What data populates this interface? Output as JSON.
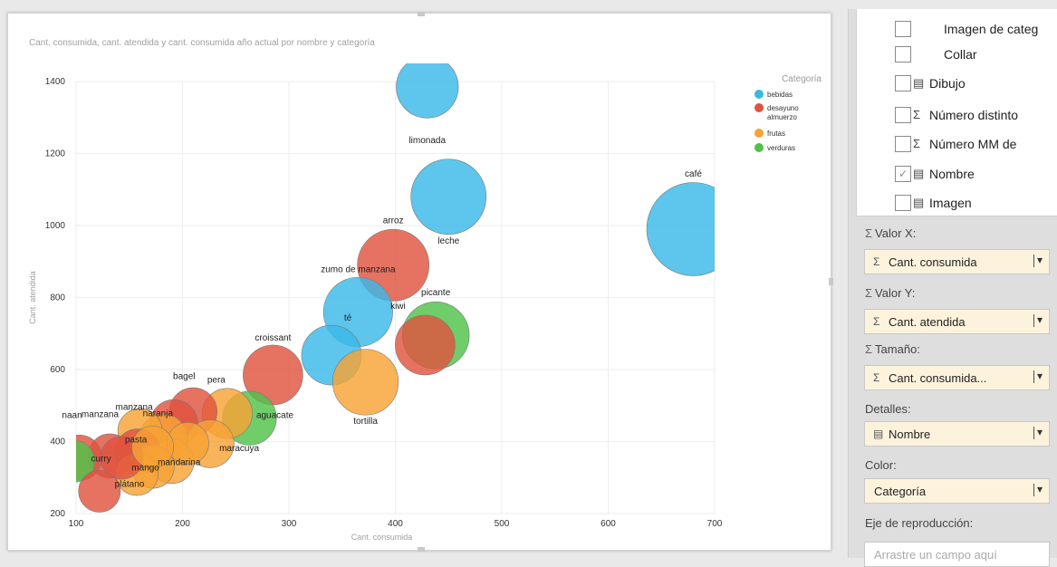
{
  "chart_title": "Cant. consumida, cant. atendida y cant. consumida año actual por nombre y categoría",
  "colors": {
    "bebidas": "#3ab8e8",
    "desayuno": "#e0533e",
    "frutas": "#f8a234",
    "verduras": "#4fc249"
  },
  "chart_data": {
    "type": "scatter",
    "subtype": "bubble",
    "title": "Cant. consumida, cant. atendida y cant. consumida año actual por nombre y categoría",
    "xlabel": "Cant. consumida",
    "ylabel": "Cant. atendida",
    "xlim": [
      100,
      700
    ],
    "ylim": [
      200,
      1400
    ],
    "x_ticks": [
      "100",
      "200",
      "300",
      "400",
      "500",
      "600",
      "700"
    ],
    "y_ticks": [
      "200",
      "400",
      "600",
      "800",
      "1000",
      "1200",
      "1400"
    ],
    "grid": true,
    "legend_title": "Categoría",
    "legend_position": "top-right",
    "legend": [
      {
        "key": "bebidas",
        "label": "bebidas"
      },
      {
        "key": "desayuno",
        "label": "desayuno almuerzo"
      },
      {
        "key": "frutas",
        "label": "frutas"
      },
      {
        "key": "verduras",
        "label": "verduras"
      }
    ],
    "points": [
      {
        "name": "limonada",
        "category": "bebidas",
        "x": 430,
        "y": 1385,
        "size": 5.2,
        "label": "limonada"
      },
      {
        "name": "café",
        "category": "bebidas",
        "x": 680,
        "y": 990,
        "size": 7.8,
        "label": "café"
      },
      {
        "name": "leche",
        "category": "bebidas",
        "x": 450,
        "y": 1080,
        "size": 6.3,
        "label": "leche"
      },
      {
        "name": "arroz",
        "category": "desayuno",
        "x": 398,
        "y": 890,
        "size": 6.0,
        "label": "arroz"
      },
      {
        "name": "zumo de manzana",
        "category": "bebidas",
        "x": 365,
        "y": 760,
        "size": 5.8,
        "label": "zumo de manzana"
      },
      {
        "name": "picante",
        "category": "verduras",
        "x": 438,
        "y": 695,
        "size": 5.6,
        "label": "picante"
      },
      {
        "name": "té",
        "category": "bebidas",
        "x": 340,
        "y": 640,
        "size": 5.0,
        "label": "té"
      },
      {
        "name": "tortilla",
        "category": "frutas",
        "x": 372,
        "y": 565,
        "size": 5.5,
        "label": "tortilla"
      },
      {
        "name": "kiwi",
        "category": "desayuno",
        "x": 428,
        "y": 668,
        "size": 5.0,
        "label": "kiwi"
      },
      {
        "name": "croissant",
        "category": "desayuno",
        "x": 285,
        "y": 585,
        "size": 5.0,
        "label": "croissant"
      },
      {
        "name": "aguacate",
        "category": "verduras",
        "x": 263,
        "y": 465,
        "size": 4.5,
        "label": "aguacate"
      },
      {
        "name": "pera",
        "category": "frutas",
        "x": 242,
        "y": 478,
        "size": 4.2,
        "label": "pera"
      },
      {
        "name": "bagel",
        "category": "desayuno",
        "x": 210,
        "y": 483,
        "size": 4.0,
        "label": "bagel"
      },
      {
        "name": "manzana",
        "category": "desayuno",
        "x": 192,
        "y": 450,
        "size": 4.0,
        "label": "manzana"
      },
      {
        "name": "maracuya",
        "category": "frutas",
        "x": 226,
        "y": 394,
        "size": 4.0,
        "label": "maracuya"
      },
      {
        "name": "naranja",
        "category": "frutas",
        "x": 182,
        "y": 410,
        "size": 4.0,
        "label": "naranja"
      },
      {
        "name": "manzana",
        "category": "frutas",
        "x": 160,
        "y": 430,
        "size": 3.7,
        "label": "manzana"
      },
      {
        "name": "pasta",
        "category": "desayuno",
        "x": 158,
        "y": 372,
        "size": 3.8,
        "label": "pasta"
      },
      {
        "name": "mandarina",
        "category": "frutas",
        "x": 190,
        "y": 345,
        "size": 3.7,
        "label": "mandarina"
      },
      {
        "name": "mango",
        "category": "frutas",
        "x": 172,
        "y": 330,
        "size": 3.6,
        "label": "mango"
      },
      {
        "name": "curry",
        "category": "desayuno",
        "x": 132,
        "y": 360,
        "size": 3.7,
        "label": "curry"
      },
      {
        "name": "plátano",
        "category": "frutas",
        "x": 157,
        "y": 310,
        "size": 3.6,
        "label": "plátano"
      },
      {
        "name": "naan",
        "category": "desayuno",
        "x": 103,
        "y": 355,
        "size": 3.8,
        "label": "naan"
      },
      {
        "name": "naan-verd",
        "category": "verduras",
        "x": 98,
        "y": 345,
        "size": 3.5,
        "label": ""
      },
      {
        "name": "small-1",
        "category": "desayuno",
        "x": 122,
        "y": 262,
        "size": 3.5,
        "label": ""
      },
      {
        "name": "small-2",
        "category": "desayuno",
        "x": 143,
        "y": 355,
        "size": 3.6,
        "label": ""
      },
      {
        "name": "small-3",
        "category": "frutas",
        "x": 205,
        "y": 395,
        "size": 3.5,
        "label": ""
      },
      {
        "name": "small-4",
        "category": "frutas",
        "x": 172,
        "y": 385,
        "size": 3.5,
        "label": ""
      }
    ]
  },
  "fields": [
    {
      "label": "Imagen de categ",
      "checked": false,
      "icon": ""
    },
    {
      "label": "Collar",
      "checked": false,
      "icon": ""
    },
    {
      "label": "Dibujo",
      "checked": false,
      "icon": "▤"
    },
    {
      "label": "Número distinto",
      "checked": false,
      "icon": "Σ"
    },
    {
      "label": "Número MM de",
      "checked": false,
      "icon": "Σ"
    },
    {
      "label": "Nombre",
      "checked": true,
      "icon": "▤"
    },
    {
      "label": "Imagen",
      "checked": false,
      "icon": "▤"
    }
  ],
  "wells": {
    "x_label": "Valor X:",
    "x_value": "Cant. consumida",
    "y_label": "Valor Y:",
    "y_value": "Cant. atendida",
    "size_label": "Tamaño:",
    "size_value": "Cant. consumida...",
    "details_label": "Detalles:",
    "details_value": "Nombre",
    "color_label": "Color:",
    "color_value": "Categoría",
    "play_label": "Eje de reproducción:",
    "play_placeholder": "Arrastre un campo aquí"
  }
}
